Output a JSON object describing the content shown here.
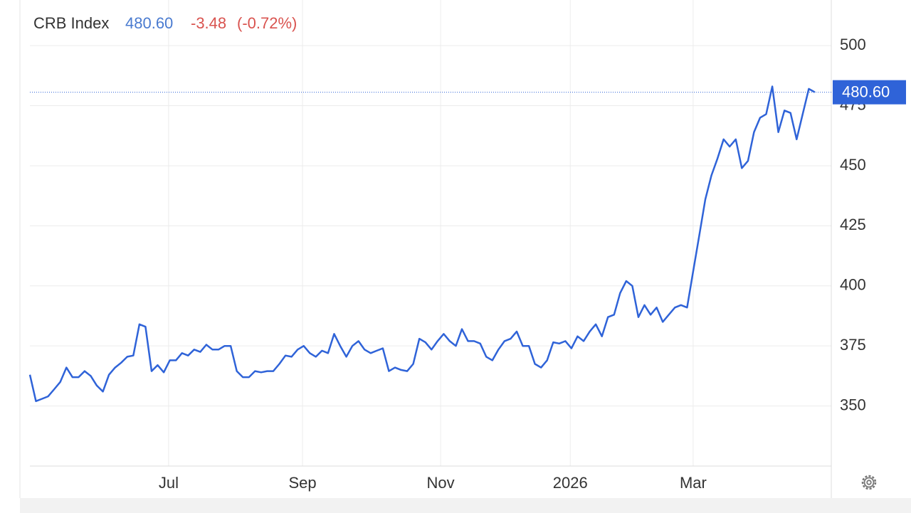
{
  "chart_data": {
    "type": "line",
    "title": "CRB Index",
    "price_label": "480.60",
    "change_label": "-3.48",
    "change_pct_label": "(-0.72%)",
    "x": [
      0,
      1,
      2,
      3,
      4,
      5,
      6,
      7,
      8,
      9,
      10,
      11,
      12,
      13,
      14,
      15,
      16,
      17,
      18,
      19,
      20,
      21,
      22,
      23,
      24,
      25,
      26,
      27,
      28,
      29,
      30,
      31,
      32,
      33,
      34,
      35,
      36,
      37,
      38,
      39,
      40,
      41,
      42,
      43,
      44,
      45,
      46,
      47,
      48,
      49,
      50,
      51,
      52,
      53,
      54,
      55,
      56,
      57,
      58,
      59,
      60,
      61,
      62,
      63,
      64,
      65,
      66,
      67,
      68,
      69,
      70,
      71,
      72,
      73,
      74,
      75,
      76,
      77,
      78,
      79,
      80,
      81,
      82,
      83,
      84,
      85,
      86,
      87,
      88,
      89,
      90,
      91,
      92,
      93,
      94,
      95,
      96,
      97,
      98,
      99,
      100,
      101,
      102,
      103,
      104,
      105,
      106,
      107,
      108,
      109,
      110,
      111,
      112,
      113,
      114,
      115,
      116,
      117,
      118,
      119,
      120,
      121,
      122,
      123,
      124,
      125,
      126,
      127,
      128,
      129
    ],
    "series": [
      {
        "name": "CRB Index",
        "color": "#2f63d8",
        "values": [
          363,
          352,
          353,
          354,
          357,
          360,
          366,
          362,
          362,
          364.5,
          362.5,
          358.5,
          356,
          363,
          366,
          368,
          370.5,
          371,
          384,
          383,
          364.5,
          367,
          364,
          369,
          369,
          372,
          371,
          373.5,
          372.5,
          375.5,
          373.5,
          373.5,
          375,
          375,
          364.5,
          362,
          362,
          364.5,
          364,
          364.5,
          364.5,
          367.5,
          371,
          370.5,
          373.5,
          375,
          372,
          370.5,
          373,
          372,
          380,
          375,
          370.5,
          375,
          377,
          373.5,
          372,
          373,
          374,
          364.5,
          366,
          365,
          364.5,
          367.5,
          378,
          376.5,
          373.5,
          377,
          380,
          377,
          375,
          382,
          377,
          377,
          376,
          370.5,
          369,
          373.5,
          377,
          378,
          381,
          375,
          375,
          367.5,
          366,
          369,
          376.5,
          376,
          377,
          374,
          379,
          377,
          381,
          384,
          379,
          387,
          388,
          397,
          402,
          400,
          387,
          392,
          388,
          391,
          385,
          388,
          391,
          392,
          391,
          406,
          421,
          436,
          446,
          453,
          461,
          458,
          461,
          449,
          452,
          464,
          470,
          471.5,
          483,
          464,
          473,
          472,
          461,
          471.5,
          482,
          480.6
        ]
      }
    ],
    "xlim": [
      0,
      131.7
    ],
    "xticks": [
      {
        "value": 22.8,
        "label": "Jul"
      },
      {
        "value": 44.8,
        "label": "Sep"
      },
      {
        "value": 67.5,
        "label": "Nov"
      },
      {
        "value": 88.8,
        "label": "2026"
      },
      {
        "value": 109.0,
        "label": "Mar"
      }
    ],
    "ylim": [
      325,
      519
    ],
    "yticks": [
      350,
      375,
      400,
      425,
      450,
      475,
      500
    ],
    "grid": true
  }
}
